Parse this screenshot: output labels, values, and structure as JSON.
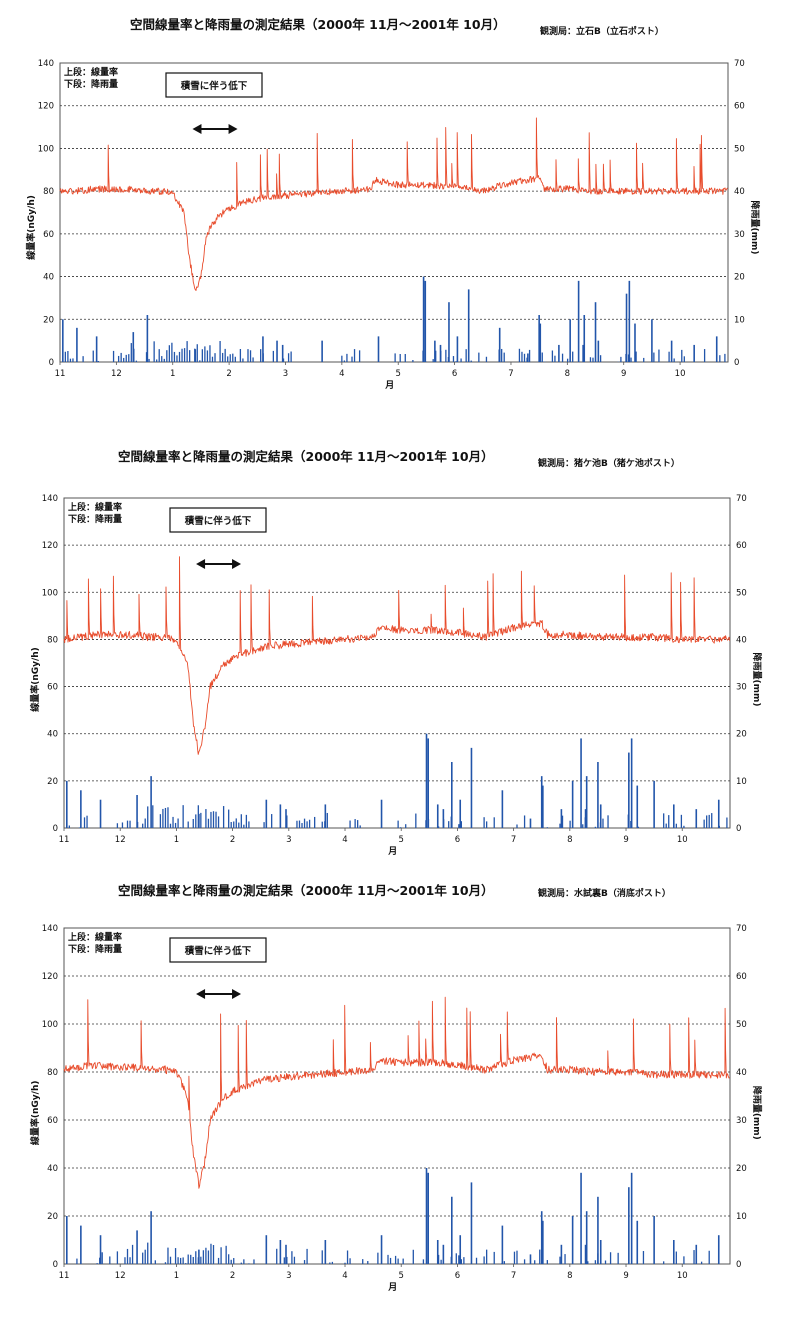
{
  "colors": {
    "dose_rate": "#e84c2c",
    "rainfall": "#2255aa",
    "grid": "#333333",
    "frame": "#555555"
  },
  "chart_data": [
    {
      "type": "line",
      "title": "空間線量率と降雨量の測定結果（2000年 11月～2001年 10月）",
      "station": "観測局：立石B（立石ポスト）",
      "legend_lines": [
        "上段：線量率",
        "下段：降雨量"
      ],
      "annotation": "積雪に伴う低下",
      "xlabel": "月",
      "ylabel_left": "線量率(nGy/h)",
      "ylabel_right": "降雨量(mm)",
      "x_ticks": [
        "11",
        "12",
        "1",
        "2",
        "3",
        "4",
        "5",
        "6",
        "7",
        "8",
        "9",
        "10"
      ],
      "y_left_ticks": [
        "0",
        "20",
        "40",
        "60",
        "80",
        "100",
        "120",
        "140"
      ],
      "y_right_ticks": [
        "0",
        "10",
        "20",
        "30",
        "40",
        "50",
        "60",
        "70"
      ],
      "ylim_left": [
        0,
        140
      ],
      "ylim_right": [
        0,
        70
      ],
      "grid": true,
      "series": [
        {
          "name": "線量率",
          "axis": "left",
          "x": [
            0,
            0.3,
            0.6,
            0.9,
            1.2,
            1.5,
            1.8,
            2.0,
            2.2,
            2.3,
            2.4,
            2.5,
            2.6,
            2.8,
            3.0,
            3.3,
            3.6,
            4.0,
            4.5,
            5.0,
            5.5,
            5.6,
            6.0,
            6.5,
            7.0,
            7.5,
            8.0,
            8.5,
            8.6,
            9.0,
            9.5,
            10.0,
            10.5,
            11.0,
            11.5,
            11.8
          ],
          "y": [
            80,
            80,
            81,
            81,
            81,
            80,
            80,
            79,
            70,
            48,
            33,
            40,
            60,
            68,
            72,
            75,
            77,
            78,
            79,
            80,
            81,
            85,
            83,
            83,
            82,
            80,
            84,
            86,
            81,
            81,
            80,
            80,
            80,
            80,
            80,
            80
          ]
        },
        {
          "name": "降雨量",
          "axis": "right",
          "bar_x": [
            0.05,
            0.3,
            0.65,
            1.3,
            1.55,
            2.4,
            3.6,
            3.85,
            3.95,
            4.65,
            5.65,
            6.45,
            6.48,
            6.65,
            6.75,
            6.9,
            7.05,
            7.25,
            7.8,
            8.3,
            8.5,
            8.52,
            8.85,
            9.05,
            9.2,
            9.28,
            9.3,
            9.5,
            9.55,
            10.05,
            10.1,
            10.2,
            10.5,
            10.85,
            11.25,
            11.65
          ],
          "bar_values": [
            10,
            8,
            6,
            7,
            11,
            3,
            6,
            5,
            4,
            5,
            6,
            20,
            19,
            5,
            4,
            14,
            6,
            17,
            8,
            2,
            11,
            9,
            4,
            10,
            19,
            4,
            11,
            14,
            5,
            16,
            19,
            9,
            10,
            5,
            4,
            6
          ]
        }
      ]
    },
    {
      "type": "line",
      "title": "空間線量率と降雨量の測定結果（2000年 11月～2001年 10月）",
      "station": "観測局：猪ケ池B（猪ケ池ポスト）",
      "legend_lines": [
        "上段：線量率",
        "下段：降雨量"
      ],
      "annotation": "積雪に伴う低下",
      "xlabel": "月",
      "ylabel_left": "線量率(nGy/h)",
      "ylabel_right": "降雨量(mm)",
      "x_ticks": [
        "11",
        "12",
        "1",
        "2",
        "3",
        "4",
        "5",
        "6",
        "7",
        "8",
        "9",
        "10"
      ],
      "y_left_ticks": [
        "0",
        "20",
        "40",
        "60",
        "80",
        "100",
        "120",
        "140"
      ],
      "y_right_ticks": [
        "0",
        "10",
        "20",
        "30",
        "40",
        "50",
        "60",
        "70"
      ],
      "ylim_left": [
        0,
        140
      ],
      "ylim_right": [
        0,
        70
      ],
      "grid": true,
      "series": [
        {
          "name": "線量率",
          "axis": "left",
          "x": [
            0,
            0.3,
            0.6,
            0.9,
            1.2,
            1.5,
            1.8,
            2.0,
            2.2,
            2.3,
            2.4,
            2.5,
            2.6,
            2.8,
            3.0,
            3.3,
            3.6,
            4.0,
            4.5,
            5.0,
            5.5,
            5.6,
            6.0,
            6.5,
            7.0,
            7.5,
            8.0,
            8.5,
            8.6,
            9.0,
            9.5,
            10.0,
            10.5,
            11.0,
            11.5,
            11.8
          ],
          "y": [
            80,
            81,
            82,
            82,
            82,
            81,
            81,
            80,
            70,
            45,
            31,
            42,
            60,
            68,
            72,
            75,
            77,
            78,
            79,
            80,
            81,
            85,
            84,
            84,
            83,
            81,
            85,
            87,
            82,
            82,
            81,
            81,
            81,
            80,
            80,
            80
          ]
        },
        {
          "name": "降雨量",
          "axis": "right",
          "bar_x": [
            0.05,
            0.3,
            0.65,
            1.3,
            1.55,
            2.4,
            3.6,
            3.85,
            3.95,
            4.65,
            5.65,
            6.45,
            6.48,
            6.65,
            6.75,
            6.9,
            7.05,
            7.25,
            7.8,
            8.3,
            8.5,
            8.52,
            8.85,
            9.05,
            9.2,
            9.28,
            9.3,
            9.5,
            9.55,
            10.05,
            10.1,
            10.2,
            10.5,
            10.85,
            11.25,
            11.65
          ],
          "bar_values": [
            10,
            8,
            6,
            7,
            11,
            3,
            6,
            5,
            4,
            5,
            6,
            20,
            19,
            5,
            4,
            14,
            6,
            17,
            8,
            2,
            11,
            9,
            4,
            10,
            19,
            4,
            11,
            14,
            5,
            16,
            19,
            9,
            10,
            5,
            4,
            6
          ]
        }
      ]
    },
    {
      "type": "line",
      "title": "空間線量率と降雨量の測定結果（2000年 11月～2001年 10月）",
      "station": "観測局：水試裏B（消底ポスト）",
      "legend_lines": [
        "上段：線量率",
        "下段：降雨量"
      ],
      "annotation": "積雪に伴う低下",
      "xlabel": "月",
      "ylabel_left": "線量率(nGy/h)",
      "ylabel_right": "降雨量(mm)",
      "x_ticks": [
        "11",
        "12",
        "1",
        "2",
        "3",
        "4",
        "5",
        "6",
        "7",
        "8",
        "9",
        "10"
      ],
      "y_left_ticks": [
        "0",
        "20",
        "40",
        "60",
        "80",
        "100",
        "120",
        "140"
      ],
      "y_right_ticks": [
        "0",
        "10",
        "20",
        "30",
        "40",
        "50",
        "60",
        "70"
      ],
      "ylim_left": [
        0,
        140
      ],
      "ylim_right": [
        0,
        70
      ],
      "grid": true,
      "series": [
        {
          "name": "線量率",
          "axis": "left",
          "x": [
            0,
            0.3,
            0.6,
            0.9,
            1.2,
            1.5,
            1.8,
            2.0,
            2.2,
            2.3,
            2.4,
            2.5,
            2.6,
            2.8,
            3.0,
            3.3,
            3.6,
            4.0,
            4.5,
            5.0,
            5.5,
            5.6,
            6.0,
            6.5,
            7.0,
            7.5,
            8.0,
            8.5,
            8.6,
            9.0,
            9.5,
            10.0,
            10.5,
            11.0,
            11.5,
            11.8
          ],
          "y": [
            81,
            82,
            83,
            82,
            82,
            81,
            81,
            80,
            70,
            46,
            33,
            42,
            60,
            68,
            72,
            75,
            77,
            78,
            79,
            80,
            81,
            85,
            84,
            84,
            83,
            81,
            85,
            87,
            81,
            81,
            80,
            80,
            79,
            79,
            79,
            79
          ]
        },
        {
          "name": "降雨量",
          "axis": "right",
          "bar_x": [
            0.05,
            0.3,
            0.65,
            1.3,
            1.55,
            2.4,
            3.6,
            3.85,
            3.95,
            4.65,
            5.65,
            6.45,
            6.48,
            6.65,
            6.75,
            6.9,
            7.05,
            7.25,
            7.8,
            8.3,
            8.5,
            8.52,
            8.85,
            9.05,
            9.2,
            9.28,
            9.3,
            9.5,
            9.55,
            10.05,
            10.1,
            10.2,
            10.5,
            10.85,
            11.25,
            11.65
          ],
          "bar_values": [
            10,
            8,
            6,
            7,
            11,
            3,
            6,
            5,
            4,
            5,
            6,
            20,
            19,
            5,
            4,
            14,
            6,
            17,
            8,
            2,
            11,
            9,
            4,
            10,
            19,
            4,
            11,
            14,
            5,
            16,
            19,
            9,
            10,
            5,
            4,
            6
          ]
        }
      ]
    }
  ]
}
